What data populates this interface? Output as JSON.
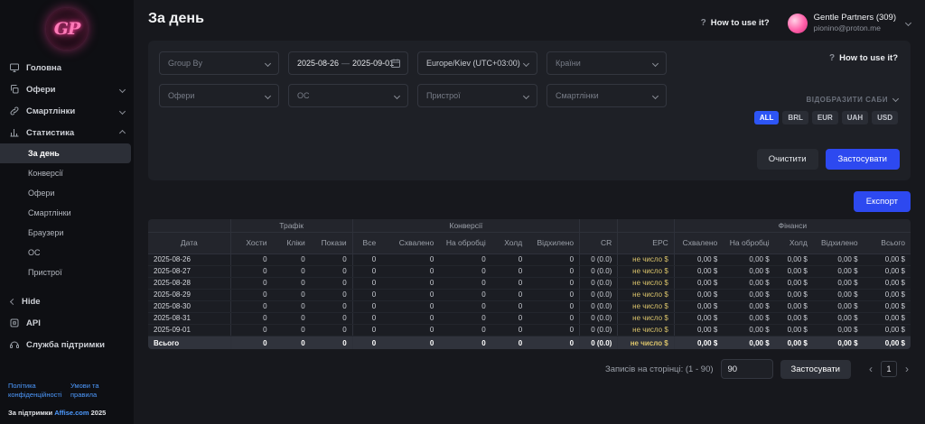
{
  "brand": {
    "logo": "GP"
  },
  "sidebar": {
    "home_label": "Головна",
    "offers_label": "Офери",
    "smartlinks_label": "Смартлінки",
    "stats_label": "Статистика",
    "stats_subitems": [
      "За день",
      "Конверсії",
      "Офери",
      "Смартлінки",
      "Браузери",
      "ОС",
      "Пристрої"
    ],
    "active_subitem": "За день",
    "hide_label": "Hide",
    "api_label": "API",
    "support_label": "Служба підтримки",
    "privacy_link": "Політика конфіденційності",
    "terms_link": "Умови та правила",
    "powered_prefix": "За підтримки",
    "powered_link": "Affise.com",
    "powered_year": "2025"
  },
  "header": {
    "title": "За день",
    "how_to": "How to use it?",
    "question_mark": "?",
    "account_name": "Gentle Partners (309)",
    "account_email": "pionino@proton.me"
  },
  "filters": {
    "group_by_placeholder": "Group By",
    "date_from": "2025-08-26",
    "date_separator": "—",
    "date_to": "2025-09-01",
    "timezone": "Europe/Kiev (UTC+03:00)",
    "countries_placeholder": "Країни",
    "offers_placeholder": "Офери",
    "os_placeholder": "ОС",
    "devices_placeholder": "Пристрої",
    "smartlinks_placeholder": "Смартлінки",
    "how_to": "How to use it?",
    "question_mark": "?",
    "show_subs_label": "ВІДОБРАЗИТИ САБИ",
    "currencies": [
      "ALL",
      "BRL",
      "EUR",
      "UAH",
      "USD"
    ],
    "active_currency": "ALL",
    "clear_label": "Очистити",
    "apply_label": "Застосувати"
  },
  "export_label": "Експорт",
  "table": {
    "groups": [
      {
        "label": "Трафік"
      },
      {
        "label": "Конверсії"
      },
      {
        "label": "Фінанси"
      }
    ],
    "columns": [
      "Дата",
      "Хости",
      "Кліки",
      "Покази",
      "Все",
      "Схвалено",
      "На обробці",
      "Холд",
      "Відхилено",
      "CR",
      "EPC",
      "Схвалено",
      "На обробці",
      "Холд",
      "Відхилено",
      "Всього"
    ],
    "rows": [
      [
        "2025-08-26",
        "0",
        "0",
        "0",
        "0",
        "0",
        "0",
        "0",
        "0",
        "0 (0.0)",
        "не число $",
        "0,00 $",
        "0,00 $",
        "0,00 $",
        "0,00 $",
        "0,00 $"
      ],
      [
        "2025-08-27",
        "0",
        "0",
        "0",
        "0",
        "0",
        "0",
        "0",
        "0",
        "0 (0.0)",
        "не число $",
        "0,00 $",
        "0,00 $",
        "0,00 $",
        "0,00 $",
        "0,00 $"
      ],
      [
        "2025-08-28",
        "0",
        "0",
        "0",
        "0",
        "0",
        "0",
        "0",
        "0",
        "0 (0.0)",
        "не число $",
        "0,00 $",
        "0,00 $",
        "0,00 $",
        "0,00 $",
        "0,00 $"
      ],
      [
        "2025-08-29",
        "0",
        "0",
        "0",
        "0",
        "0",
        "0",
        "0",
        "0",
        "0 (0.0)",
        "не число $",
        "0,00 $",
        "0,00 $",
        "0,00 $",
        "0,00 $",
        "0,00 $"
      ],
      [
        "2025-08-30",
        "0",
        "0",
        "0",
        "0",
        "0",
        "0",
        "0",
        "0",
        "0 (0.0)",
        "не число $",
        "0,00 $",
        "0,00 $",
        "0,00 $",
        "0,00 $",
        "0,00 $"
      ],
      [
        "2025-08-31",
        "0",
        "0",
        "0",
        "0",
        "0",
        "0",
        "0",
        "0",
        "0 (0.0)",
        "не число $",
        "0,00 $",
        "0,00 $",
        "0,00 $",
        "0,00 $",
        "0,00 $"
      ],
      [
        "2025-09-01",
        "0",
        "0",
        "0",
        "0",
        "0",
        "0",
        "0",
        "0",
        "0 (0.0)",
        "не число $",
        "0,00 $",
        "0,00 $",
        "0,00 $",
        "0,00 $",
        "0,00 $"
      ]
    ],
    "footer": [
      "Всього",
      "0",
      "0",
      "0",
      "0",
      "0",
      "0",
      "0",
      "0",
      "0 (0.0)",
      "не число $",
      "0,00 $",
      "0,00 $",
      "0,00 $",
      "0,00 $",
      "0,00 $"
    ]
  },
  "pagination": {
    "per_page_label": "Записів на сторінці: (1 - 90)",
    "per_page_value": "90",
    "apply_label": "Застосувати",
    "prev_arrow": "‹",
    "current_page": "1",
    "next_arrow": "›"
  }
}
